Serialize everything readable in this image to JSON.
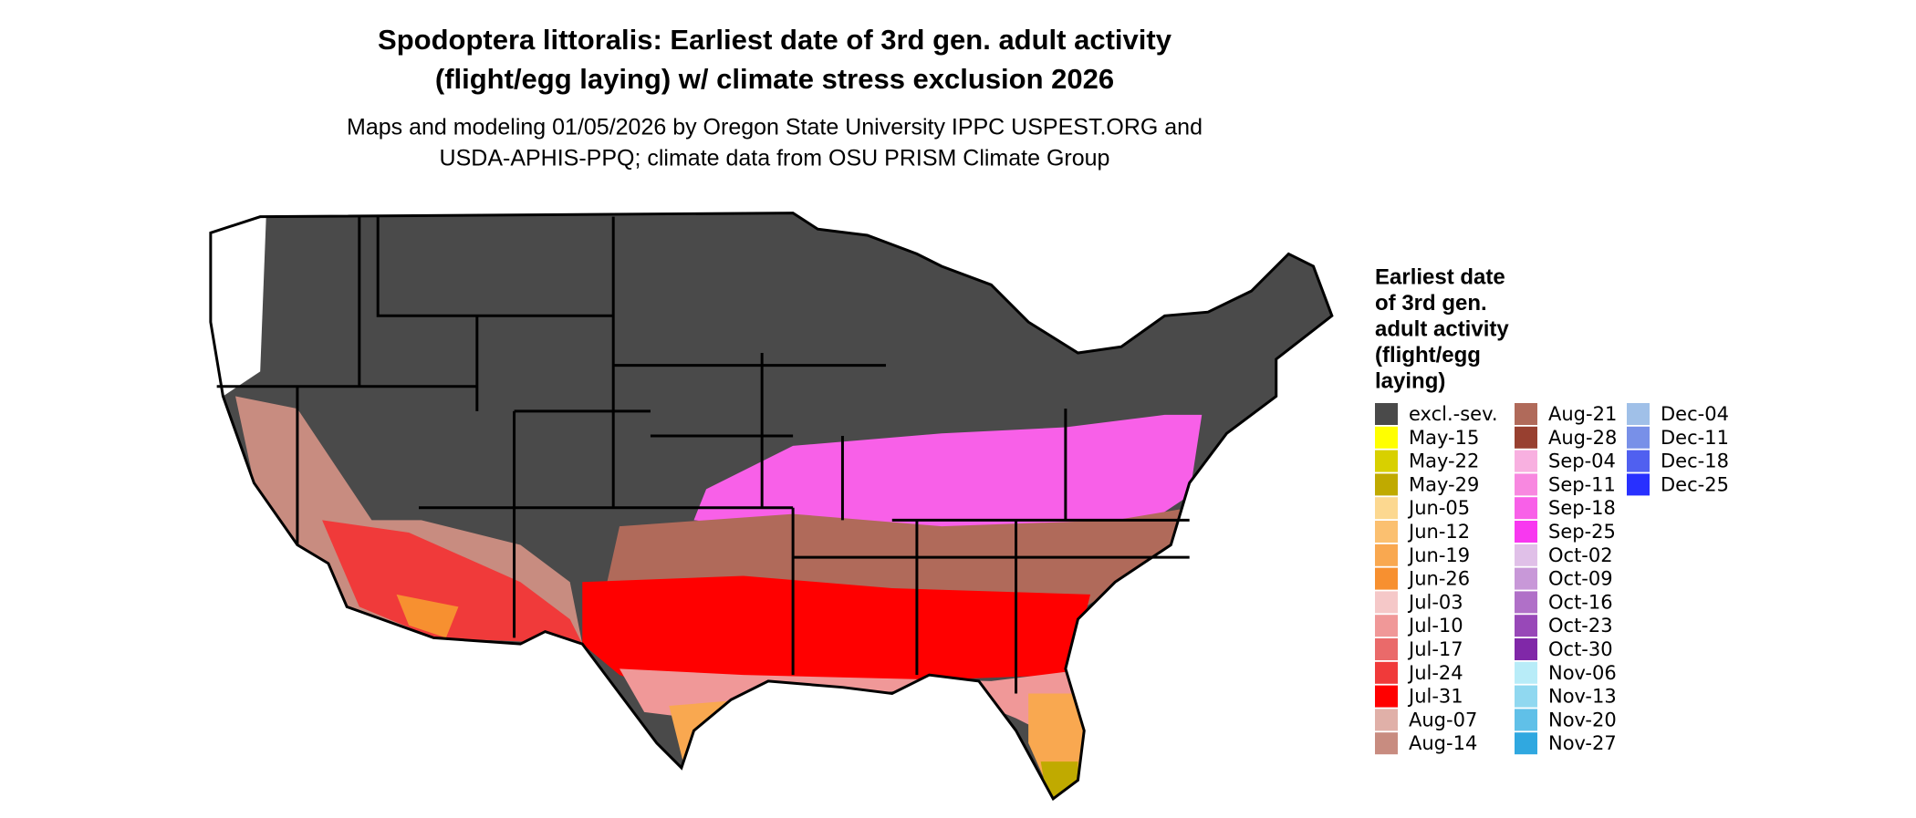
{
  "title": [
    "Spodoptera littoralis: Earliest date of 3rd gen. adult activity",
    "(flight/egg laying) w/ climate stress exclusion 2026"
  ],
  "subtitle": [
    "Maps and modeling 01/05/2026 by Oregon State University IPPC USPEST.ORG and",
    "USDA-APHIS-PPQ; climate data from OSU PRISM Climate Group"
  ],
  "legend": {
    "title": [
      "Earliest date",
      "of 3rd gen.",
      "adult activity",
      "(flight/egg",
      "laying)"
    ],
    "items": [
      {
        "label": "excl.-sev.",
        "color": "#4a4a4a"
      },
      {
        "label": "May-15",
        "color": "#ffff00"
      },
      {
        "label": "May-22",
        "color": "#d8d000"
      },
      {
        "label": "May-29",
        "color": "#c0aa00"
      },
      {
        "label": "Jun-05",
        "color": "#fcd890"
      },
      {
        "label": "Jun-12",
        "color": "#fbc070"
      },
      {
        "label": "Jun-19",
        "color": "#f9a850"
      },
      {
        "label": "Jun-26",
        "color": "#f79030"
      },
      {
        "label": "Jul-03",
        "color": "#f5c8c8"
      },
      {
        "label": "Jul-10",
        "color": "#f09898"
      },
      {
        "label": "Jul-17",
        "color": "#ea6a6a"
      },
      {
        "label": "Jul-24",
        "color": "#f03a3a"
      },
      {
        "label": "Jul-31",
        "color": "#ff0000"
      },
      {
        "label": "Aug-07",
        "color": "#e0b0a8"
      },
      {
        "label": "Aug-14",
        "color": "#c88c80"
      },
      {
        "label": "Aug-21",
        "color": "#b06a5a"
      },
      {
        "label": "Aug-28",
        "color": "#984030"
      },
      {
        "label": "Sep-04",
        "color": "#f8b0e0"
      },
      {
        "label": "Sep-11",
        "color": "#f888e0"
      },
      {
        "label": "Sep-18",
        "color": "#f860e8"
      },
      {
        "label": "Sep-25",
        "color": "#f838f0"
      },
      {
        "label": "Oct-02",
        "color": "#e0c0e8"
      },
      {
        "label": "Oct-09",
        "color": "#c898d8"
      },
      {
        "label": "Oct-16",
        "color": "#b070c8"
      },
      {
        "label": "Oct-23",
        "color": "#9848b8"
      },
      {
        "label": "Oct-30",
        "color": "#8028a8"
      },
      {
        "label": "Nov-06",
        "color": "#b8ecf8"
      },
      {
        "label": "Nov-13",
        "color": "#90d8f0"
      },
      {
        "label": "Nov-20",
        "color": "#60c0e8"
      },
      {
        "label": "Nov-27",
        "color": "#30a8e0"
      },
      {
        "label": "Dec-04",
        "color": "#a0c0e8"
      },
      {
        "label": "Dec-11",
        "color": "#7890e8"
      },
      {
        "label": "Dec-18",
        "color": "#5060f0"
      },
      {
        "label": "Dec-25",
        "color": "#2830ff"
      }
    ]
  }
}
